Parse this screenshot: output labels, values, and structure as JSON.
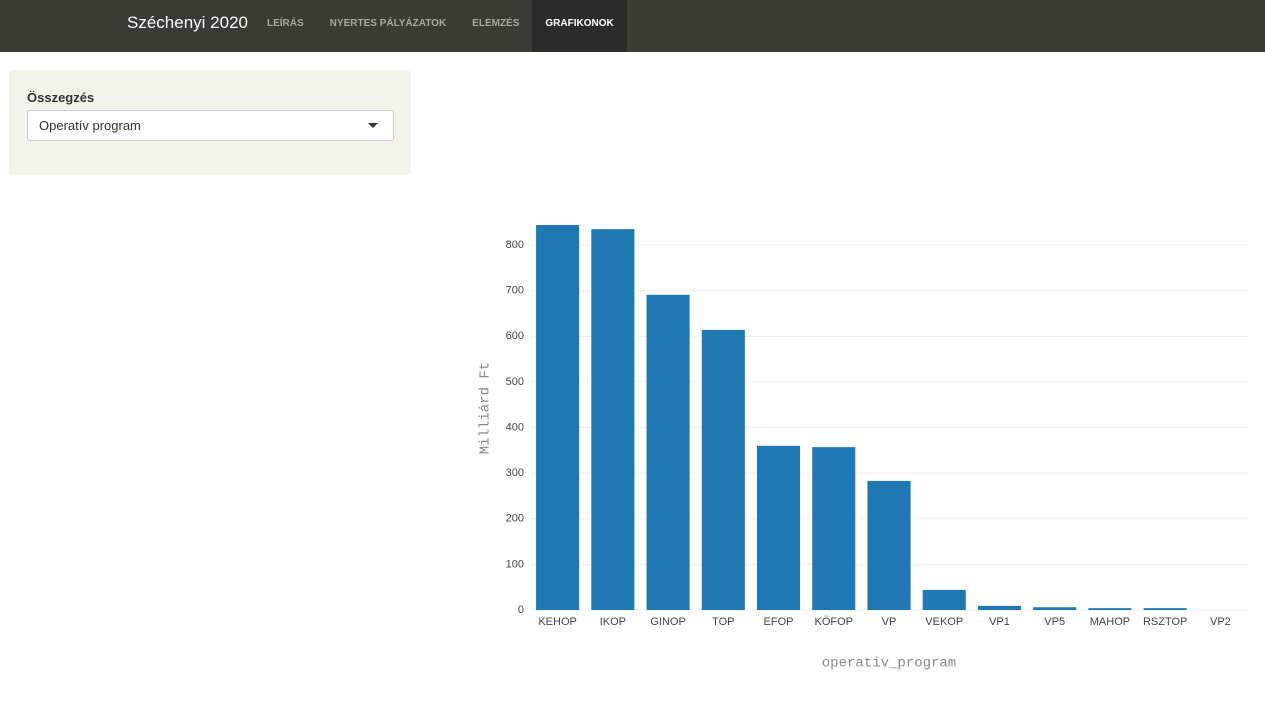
{
  "navbar": {
    "brand": "Széchenyi 2020",
    "items": [
      {
        "label": "LEÍRÁS",
        "active": false
      },
      {
        "label": "NYERTES PÁLYÁZATOK",
        "active": false
      },
      {
        "label": "ELEMZÉS",
        "active": false
      },
      {
        "label": "GRAFIKONOK",
        "active": true
      }
    ]
  },
  "sidebar": {
    "label": "Összegzés",
    "select_value": "Operatív program"
  },
  "chart_data": {
    "type": "bar",
    "categories": [
      "KEHOP",
      "IKOP",
      "GINOP",
      "TOP",
      "EFOP",
      "KÖFOP",
      "VP",
      "VEKOP",
      "VP1",
      "VP5",
      "MAHOP",
      "RSZTOP",
      "VP2"
    ],
    "values": [
      844,
      835,
      691,
      614,
      360,
      357,
      283,
      44,
      9,
      6,
      4,
      4,
      0
    ],
    "color": "#1f77b4",
    "xlabel": "operativ_program",
    "ylabel": "Milliárd Ft",
    "ylim": [
      0,
      855
    ],
    "yticks": [
      0,
      100,
      200,
      300,
      400,
      500,
      600,
      700,
      800
    ],
    "grid": true
  }
}
